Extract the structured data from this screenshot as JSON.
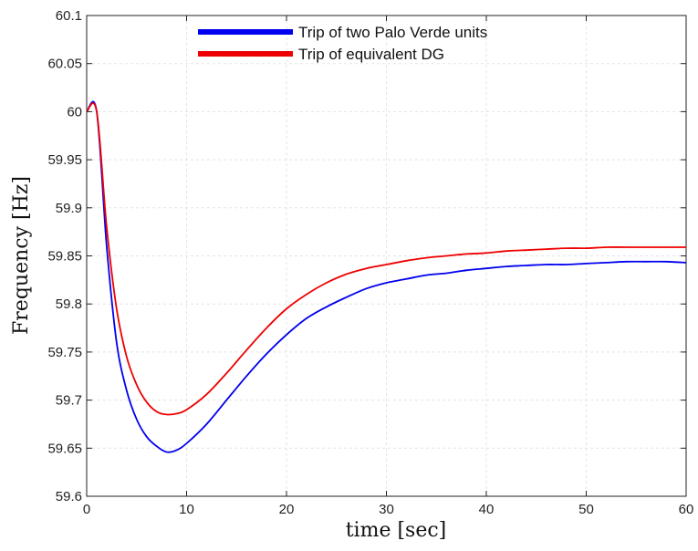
{
  "chart_data": {
    "type": "line",
    "xlabel": "time [sec]",
    "ylabel": "Frequency [Hz]",
    "xlim": [
      0,
      60
    ],
    "ylim": [
      59.6,
      60.1
    ],
    "x_ticks": [
      0,
      10,
      20,
      30,
      40,
      50,
      60
    ],
    "x_tick_labels": [
      "0",
      "10",
      "20",
      "30",
      "40",
      "50",
      "60"
    ],
    "y_ticks": [
      59.6,
      59.65,
      59.7,
      59.75,
      59.8,
      59.85,
      59.9,
      59.95,
      60.0,
      60.05,
      60.1
    ],
    "y_tick_labels": [
      "59.6",
      "59.65",
      "59.7",
      "59.75",
      "59.8",
      "59.85",
      "59.9",
      "59.95",
      "60",
      "60.05",
      "60.1"
    ],
    "grid": true,
    "legend_position": "top-center",
    "series": [
      {
        "name": "Trip of two Palo Verde units",
        "color": "#0000ee",
        "x": [
          0,
          1,
          2,
          3,
          4,
          5,
          6,
          7,
          8,
          9,
          10,
          12,
          14,
          16,
          18,
          20,
          22,
          24,
          26,
          28,
          30,
          32,
          34,
          36,
          38,
          40,
          42,
          44,
          46,
          48,
          50,
          52,
          54,
          56,
          58,
          60
        ],
        "y": [
          60.0,
          60.0,
          59.86,
          59.76,
          59.71,
          59.68,
          59.662,
          59.652,
          59.646,
          59.648,
          59.655,
          59.675,
          59.7,
          59.725,
          59.748,
          59.768,
          59.785,
          59.797,
          59.807,
          59.816,
          59.822,
          59.826,
          59.83,
          59.832,
          59.835,
          59.837,
          59.839,
          59.84,
          59.841,
          59.841,
          59.842,
          59.843,
          59.844,
          59.844,
          59.844,
          59.843
        ]
      },
      {
        "name": "Trip of equivalent DG",
        "color": "#ee0000",
        "x": [
          0,
          1,
          2,
          3,
          4,
          5,
          6,
          7,
          8,
          9,
          10,
          12,
          14,
          16,
          18,
          20,
          22,
          24,
          26,
          28,
          30,
          32,
          34,
          36,
          38,
          40,
          42,
          44,
          46,
          48,
          50,
          52,
          54,
          56,
          58,
          60
        ],
        "y": [
          60.0,
          60.0,
          59.88,
          59.795,
          59.745,
          59.716,
          59.698,
          59.688,
          59.685,
          59.686,
          59.69,
          59.706,
          59.728,
          59.752,
          59.775,
          59.795,
          59.81,
          59.822,
          59.831,
          59.837,
          59.841,
          59.845,
          59.848,
          59.85,
          59.852,
          59.853,
          59.855,
          59.856,
          59.857,
          59.858,
          59.858,
          59.859,
          59.859,
          59.859,
          59.859,
          59.859
        ]
      }
    ]
  }
}
